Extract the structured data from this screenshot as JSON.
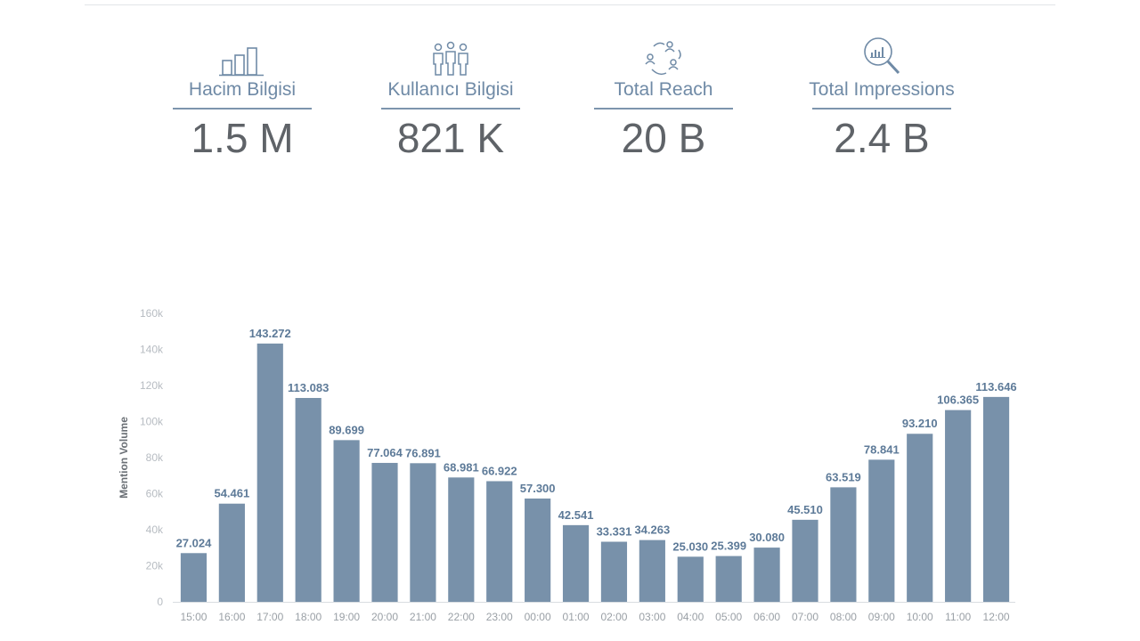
{
  "colors": {
    "bar": "#7891aa",
    "label": "#5d7a98",
    "kpi_label": "#6f8aa6",
    "kpi_value": "#5f6368"
  },
  "kpis": [
    {
      "icon": "bar-chart-icon",
      "label": "Hacim Bilgisi",
      "value": "1.5 M"
    },
    {
      "icon": "people-group-icon",
      "label": "Kullanıcı Bilgisi",
      "value": "821 K"
    },
    {
      "icon": "network-reach-icon",
      "label": "Total Reach",
      "value": "20 B"
    },
    {
      "icon": "magnifier-chart-icon",
      "label": "Total Impressions",
      "value": "2.4 B"
    }
  ],
  "chart_data": {
    "type": "bar",
    "title": "",
    "xlabel": "",
    "ylabel": "Mention Volume",
    "ylim": [
      0,
      160000
    ],
    "y_ticks": [
      0,
      20000,
      40000,
      60000,
      80000,
      100000,
      120000,
      140000,
      160000
    ],
    "y_tick_labels": [
      "0",
      "20k",
      "40k",
      "60k",
      "80k",
      "100k",
      "120k",
      "140k",
      "160k"
    ],
    "categories": [
      "15:00",
      "16:00",
      "17:00",
      "18:00",
      "19:00",
      "20:00",
      "21:00",
      "22:00",
      "23:00",
      "00:00",
      "01:00",
      "02:00",
      "03:00",
      "04:00",
      "05:00",
      "06:00",
      "07:00",
      "08:00",
      "09:00",
      "10:00",
      "11:00",
      "12:00"
    ],
    "values": [
      27024,
      54461,
      143272,
      113083,
      89699,
      77064,
      76891,
      68981,
      66922,
      57300,
      42541,
      33331,
      34263,
      25030,
      25399,
      30080,
      45510,
      63519,
      78841,
      93210,
      106365,
      113646
    ],
    "data_labels": [
      "27.024",
      "54.461",
      "143.272",
      "113.083",
      "89.699",
      "77.064",
      "76.891",
      "68.981",
      "66.922",
      "57.300",
      "42.541",
      "33.331",
      "34.263",
      "25.030",
      "25.399",
      "30.080",
      "45.510",
      "63.519",
      "78.841",
      "93.210",
      "106.365",
      "113.646"
    ],
    "grid": false
  }
}
